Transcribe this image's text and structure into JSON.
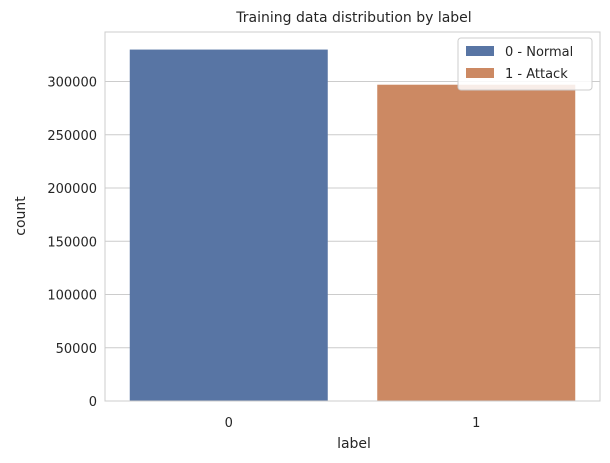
{
  "chart_data": {
    "type": "bar",
    "title": "Training data distribution by label",
    "xlabel": "label",
    "ylabel": "count",
    "categories": [
      "0",
      "1"
    ],
    "values": [
      330000,
      297000
    ],
    "colors": [
      "#5875a4",
      "#cc8963"
    ],
    "ylim": [
      0,
      346500
    ],
    "yticks": [
      0,
      50000,
      100000,
      150000,
      200000,
      250000,
      300000
    ],
    "grid": "horizontal",
    "legend": {
      "placement": "top-right",
      "entries": [
        {
          "label": "0 - Normal",
          "color": "#5875a4"
        },
        {
          "label": "1 - Attack",
          "color": "#cc8963"
        }
      ]
    }
  }
}
